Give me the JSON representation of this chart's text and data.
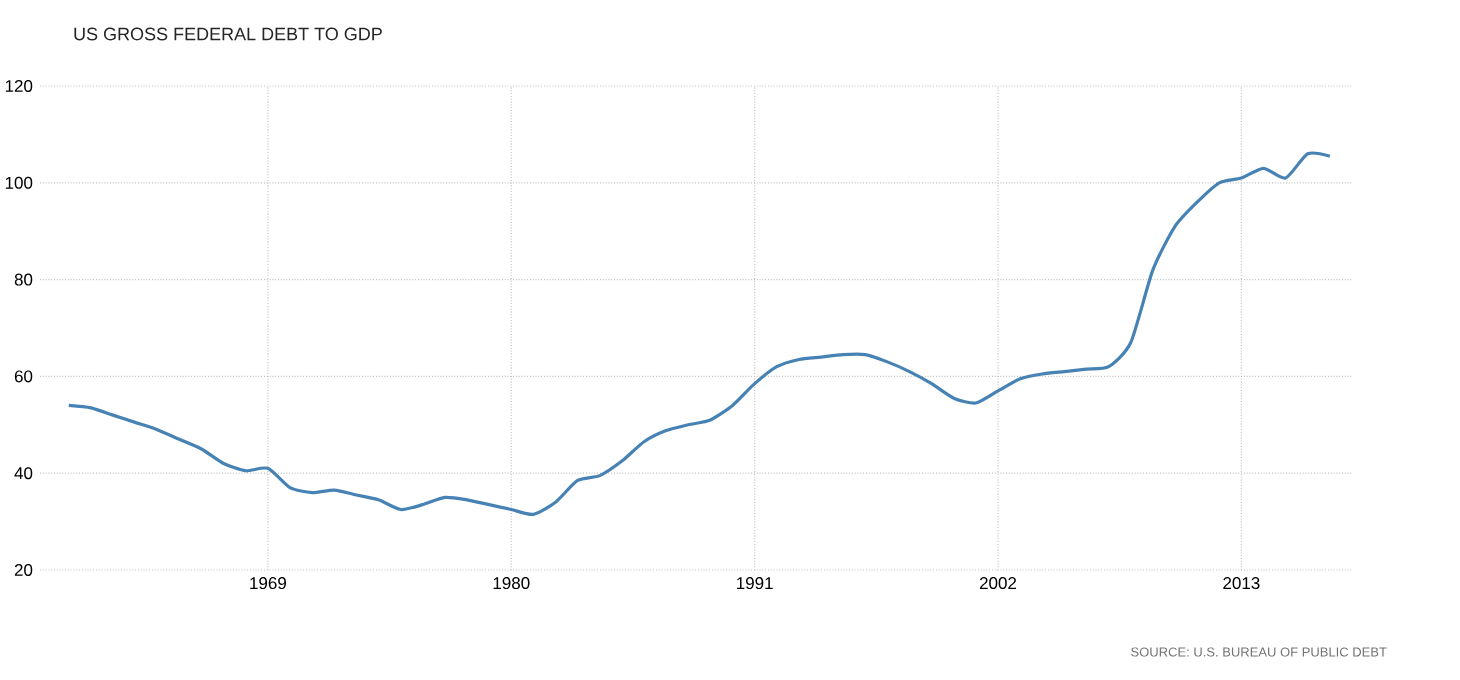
{
  "chart_data": {
    "type": "line",
    "title": "US GROSS FEDERAL DEBT TO GDP",
    "x": [
      1960,
      1961,
      1962,
      1963,
      1964,
      1965,
      1966,
      1967,
      1968,
      1969,
      1970,
      1971,
      1972,
      1973,
      1974,
      1975,
      1976,
      1977,
      1978,
      1979,
      1980,
      1981,
      1982,
      1983,
      1984,
      1985,
      1986,
      1987,
      1988,
      1989,
      1990,
      1991,
      1992,
      1993,
      1994,
      1995,
      1996,
      1997,
      1998,
      1999,
      2000,
      2001,
      2002,
      2003,
      2004,
      2005,
      2006,
      2007,
      2008,
      2009,
      2010,
      2011,
      2012,
      2013,
      2014,
      2015,
      2016,
      2017
    ],
    "series": [
      {
        "color": "#4682b4",
        "values": [
          54,
          53.5,
          52,
          50.5,
          49,
          47,
          45,
          42,
          40.5,
          41,
          37,
          36,
          36.5,
          35.5,
          34.5,
          32.5,
          33.5,
          35,
          34.5,
          33.5,
          32.5,
          31.5,
          34,
          38.5,
          39.5,
          42.5,
          46.5,
          48.8,
          50,
          51,
          54,
          58.5,
          62,
          63.5,
          64,
          64.5,
          64.5,
          63,
          61,
          58.5,
          55.5,
          54.5,
          57,
          59.5,
          60.5,
          61,
          61.5,
          62,
          67,
          82,
          91,
          96,
          100,
          101,
          103,
          101,
          106,
          105.5
        ]
      }
    ],
    "xlim": [
      1958.7,
      2018
    ],
    "ylim": [
      20,
      120
    ],
    "xticks": [
      1969,
      1980,
      1991,
      2002,
      2013
    ],
    "yticks": [
      20,
      40,
      60,
      80,
      100,
      120
    ],
    "grid": true,
    "marker": "none",
    "line_style": "solid",
    "annotations": [
      "SOURCE: U.S. BUREAU OF PUBLIC DEBT"
    ]
  }
}
